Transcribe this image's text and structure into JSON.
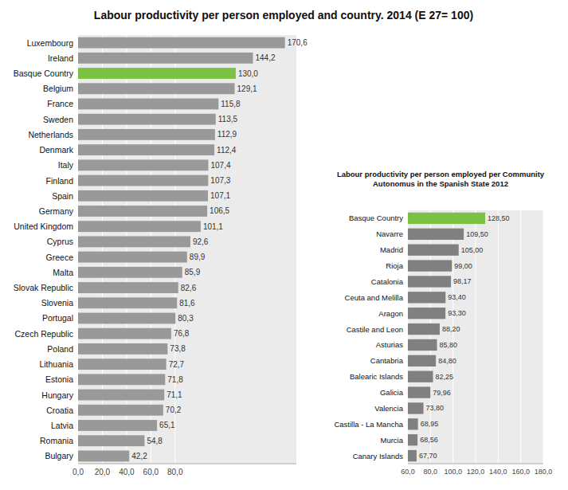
{
  "chart_data": [
    {
      "type": "bar",
      "orientation": "horizontal",
      "title": "Labour productivity per person employed and country. 2014 (E 27= 100)",
      "categories": [
        "Luxembourg",
        "Ireland",
        "Basque Country",
        "Belgium",
        "France",
        "Sweden",
        "Netherlands",
        "Denmark",
        "Italy",
        "Finland",
        "Spain",
        "Germany",
        "United Kingdom",
        "Cyprus",
        "Greece",
        "Malta",
        "Slovak Republic",
        "Slovenia",
        "Portugal",
        "Czech Republic",
        "Poland",
        "Lithuania",
        "Estonia",
        "Hungary",
        "Croatia",
        "Latvia",
        "Romania",
        "Bulgary"
      ],
      "values": [
        170.6,
        144.2,
        130.0,
        129.1,
        115.8,
        113.5,
        112.9,
        112.4,
        107.4,
        107.3,
        107.1,
        106.5,
        101.1,
        92.6,
        89.9,
        85.9,
        82.6,
        81.6,
        80.3,
        76.8,
        73.8,
        72.7,
        71.8,
        71.1,
        70.2,
        65.1,
        54.8,
        42.2
      ],
      "value_labels": [
        "170,6",
        "144,2",
        "130,0",
        "129,1",
        "115,8",
        "113,5",
        "112,9",
        "112,4",
        "107,4",
        "107,3",
        "107,1",
        "106,5",
        "101,1",
        "92,6",
        "89,9",
        "85,9",
        "82,6",
        "81,6",
        "80,3",
        "76,8",
        "73,8",
        "72,7",
        "71,8",
        "71,1",
        "70,2",
        "65,1",
        "54,8",
        "42,2"
      ],
      "colors": [
        "#999999",
        "#999999",
        "#7dc142",
        "#999999",
        "#999999",
        "#999999",
        "#999999",
        "#999999",
        "#999999",
        "#999999",
        "#999999",
        "#999999",
        "#999999",
        "#999999",
        "#999999",
        "#999999",
        "#999999",
        "#999999",
        "#999999",
        "#999999",
        "#999999",
        "#999999",
        "#999999",
        "#999999",
        "#999999",
        "#999999",
        "#999999",
        "#999999"
      ],
      "xlim": [
        0,
        180
      ],
      "xticks": [
        {
          "value": 0,
          "label": "0,0"
        },
        {
          "value": 20,
          "label": "20,0"
        },
        {
          "value": 40,
          "label": "40,0"
        },
        {
          "value": 60,
          "label": "60,0"
        },
        {
          "value": 80,
          "label": "80,0"
        }
      ],
      "grid": true,
      "data_labels": true
    },
    {
      "type": "bar",
      "orientation": "horizontal",
      "title": "Labour productivity per person employed per Community\nAutonomus in the Spanish State 2012",
      "categories": [
        "Basque Country",
        "Navarre",
        "Madrid",
        "Rioja",
        "Catalonia",
        "Ceuta and Melilla",
        "Aragon",
        "Castile and Leon",
        "Asturias",
        "Cantabria",
        "Balearic Islands",
        "Galicia",
        "Valencia",
        "Castilla - La Mancha",
        "Murcia",
        "Canary Islands"
      ],
      "values": [
        128.5,
        109.5,
        105.0,
        99.0,
        98.17,
        93.4,
        93.3,
        88.2,
        85.8,
        84.8,
        82.25,
        79.96,
        73.8,
        68.95,
        68.56,
        67.7
      ],
      "value_labels": [
        "128,50",
        "109,50",
        "105,00",
        "99,00",
        "98,17",
        "93,40",
        "93,30",
        "88,20",
        "85,80",
        "84,80",
        "82,25",
        "79,96",
        "73,80",
        "68,95",
        "68,56",
        "67,70"
      ],
      "colors": [
        "#7dc142",
        "#808080",
        "#808080",
        "#808080",
        "#808080",
        "#808080",
        "#808080",
        "#808080",
        "#808080",
        "#808080",
        "#808080",
        "#808080",
        "#808080",
        "#808080",
        "#808080",
        "#808080"
      ],
      "xlim": [
        60,
        180
      ],
      "xticks": [
        {
          "value": 60,
          "label": "60,0"
        },
        {
          "value": 80,
          "label": "80,0"
        },
        {
          "value": 100,
          "label": "100,0"
        },
        {
          "value": 120,
          "label": "120,0"
        },
        {
          "value": 140,
          "label": "140,0"
        },
        {
          "value": 160,
          "label": "160,0"
        },
        {
          "value": 180,
          "label": "180,0"
        }
      ],
      "grid": true,
      "data_labels": true
    }
  ]
}
